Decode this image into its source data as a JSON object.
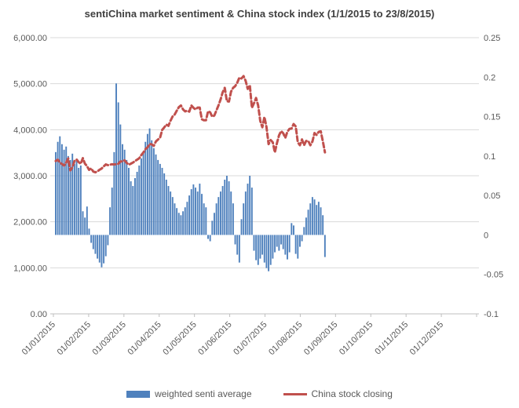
{
  "chart_data": {
    "type": "combo",
    "title": "sentiChina market sentiment & China stock index (1/1/2015 to 23/8/2015)",
    "grid": true,
    "legend_position": "bottom",
    "colors": {
      "bar": "#4F81BD",
      "line": "#C0504D",
      "gridline": "#D9D9D9",
      "axis_line": "#BFBFBF",
      "tick_label": "#595959",
      "title_text": "#3F3F3F",
      "background": "#FFFFFF"
    },
    "x_axis": {
      "tick_labels": [
        "01/01/2015",
        "01/02/2015",
        "01/03/2015",
        "01/04/2015",
        "01/05/2015",
        "01/06/2015",
        "01/07/2015",
        "01/08/2015",
        "01/09/2015",
        "01/10/2015",
        "01/11/2015",
        "01/12/2015"
      ],
      "data_start": "1/1/2015",
      "data_end": "23/8/2015",
      "label_rotation_deg": -45
    },
    "y_left": {
      "min": 0,
      "max": 6000,
      "tick_labels": [
        "6,000.00",
        "5,000.00",
        "4,000.00",
        "3,000.00",
        "2,000.00",
        "1,000.00",
        "0.00"
      ],
      "applies_to": "China stock closing"
    },
    "y_right": {
      "min": -0.1,
      "max": 0.25,
      "tick_labels": [
        "0.25",
        "0.2",
        "0.15",
        "0.1",
        "0.05",
        "0",
        "-0.05",
        "-0.1"
      ],
      "applies_to": "weighted senti average"
    },
    "series": [
      {
        "name": "weighted senti average",
        "type": "bar",
        "axis": "right",
        "color": "#4F81BD",
        "values": [
          0.105,
          0.118,
          0.125,
          0.115,
          0.108,
          0.112,
          0.1,
          0.095,
          0.103,
          0.09,
          0.095,
          0.085,
          0.088,
          0.03,
          0.022,
          0.036,
          0.008,
          -0.01,
          -0.018,
          -0.024,
          -0.03,
          -0.035,
          -0.041,
          -0.036,
          -0.027,
          -0.013,
          0.035,
          0.06,
          0.105,
          0.192,
          0.168,
          0.14,
          0.115,
          0.108,
          0.095,
          0.085,
          0.068,
          0.062,
          0.072,
          0.08,
          0.088,
          0.097,
          0.105,
          0.118,
          0.128,
          0.135,
          0.12,
          0.11,
          0.102,
          0.095,
          0.09,
          0.085,
          0.078,
          0.07,
          0.062,
          0.055,
          0.048,
          0.04,
          0.034,
          0.028,
          0.025,
          0.03,
          0.035,
          0.042,
          0.05,
          0.058,
          0.064,
          0.06,
          0.055,
          0.065,
          0.052,
          0.04,
          0.035,
          -0.005,
          -0.008,
          0.018,
          0.028,
          0.04,
          0.048,
          0.055,
          0.062,
          0.07,
          0.075,
          0.068,
          0.055,
          0.04,
          -0.012,
          -0.025,
          -0.035,
          0.02,
          0.04,
          0.055,
          0.065,
          0.075,
          0.06,
          -0.02,
          -0.032,
          -0.038,
          -0.03,
          -0.025,
          -0.035,
          -0.042,
          -0.046,
          -0.038,
          -0.03,
          -0.022,
          -0.015,
          -0.02,
          -0.012,
          -0.018,
          -0.025,
          -0.031,
          -0.022,
          0.015,
          0.012,
          -0.024,
          -0.03,
          -0.015,
          -0.008,
          0.01,
          0.022,
          0.032,
          0.04,
          0.048,
          0.045,
          0.038,
          0.042,
          0.035,
          0.025,
          -0.028
        ]
      },
      {
        "name": "China stock closing",
        "type": "line",
        "axis": "left",
        "color": "#C0504D",
        "dashed": true,
        "values": [
          3320,
          3350,
          3290,
          3255,
          3222,
          3285,
          3376,
          3116,
          3180,
          3323,
          3352,
          3296,
          3260,
          3383,
          3262,
          3210,
          3128,
          3160,
          3090,
          3075,
          3095,
          3130,
          3157,
          3203,
          3246,
          3230,
          3240,
          3250,
          3246,
          3250,
          3260,
          3310,
          3310,
          3336,
          3280,
          3241,
          3262,
          3286,
          3320,
          3349,
          3380,
          3449,
          3505,
          3577,
          3617,
          3691,
          3682,
          3650,
          3746,
          3786,
          3826,
          3995,
          4050,
          4112,
          4084,
          4194,
          4287,
          4330,
          4414,
          4490,
          4527,
          4442,
          4398,
          4414,
          4393,
          4527,
          4476,
          4441,
          4480,
          4480,
          4229,
          4205,
          4206,
          4401,
          4378,
          4283,
          4309,
          4418,
          4529,
          4657,
          4814,
          4910,
          4620,
          4612,
          4828,
          4910,
          4947,
          5023,
          5132,
          5113,
          5166,
          5062,
          4887,
          4967,
          4478,
          4576,
          4690,
          4527,
          4193,
          4053,
          4277,
          4054,
          3687,
          3776,
          3727,
          3507,
          3709,
          3877,
          3970,
          3924,
          3823,
          3957,
          4018,
          4026,
          4124,
          4071,
          3726,
          3663,
          3789,
          3664,
          3757,
          3757,
          3662,
          3744,
          3928,
          3886,
          3954,
          3965,
          3748,
          3508
        ]
      }
    ]
  }
}
